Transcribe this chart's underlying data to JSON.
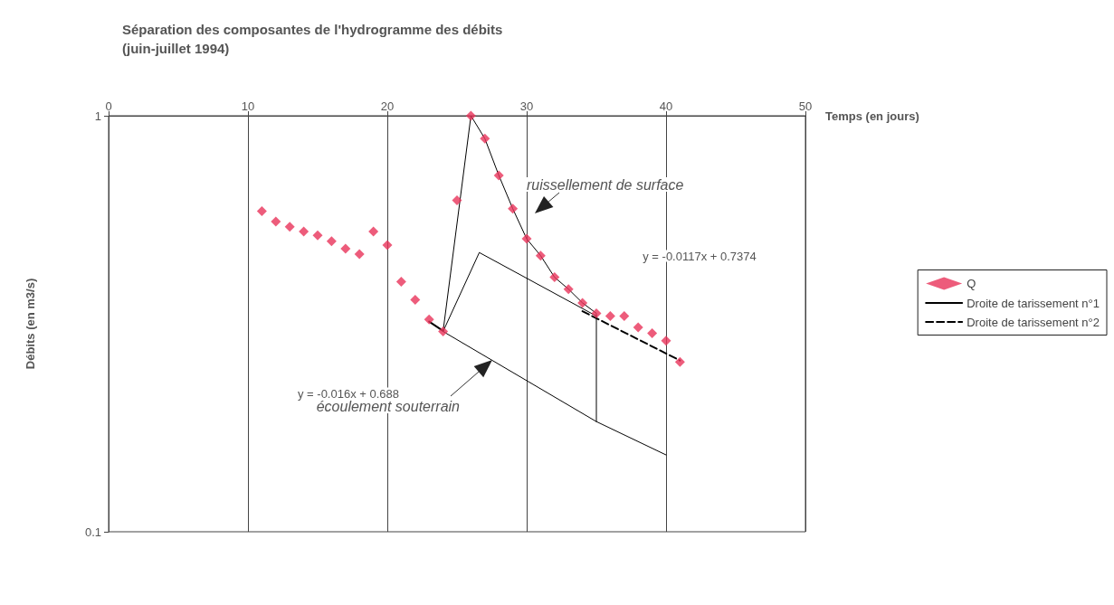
{
  "chart_data": {
    "type": "scatter",
    "title": "Séparation des composantes de l'hydrogramme des débits",
    "subtitle": "(juin-juillet 1994)",
    "xlabel": "Temps (en jours)",
    "ylabel": "Débits (en m3/s)",
    "xlim": [
      0,
      50
    ],
    "xticks": [
      0,
      10,
      20,
      30,
      40,
      50
    ],
    "ylim": [
      0.1,
      1
    ],
    "yticks": [
      0.1,
      1
    ],
    "log": "y",
    "grid": "x",
    "legend": "right",
    "series": [
      {
        "name": "Q",
        "marker": "diamond",
        "color": "#e8335a",
        "x": [
          11,
          12,
          13,
          14,
          15,
          16,
          17,
          18,
          19,
          20,
          21,
          22,
          23,
          24,
          25,
          26,
          27,
          28,
          29,
          30,
          31,
          32,
          33,
          34,
          35,
          36,
          37,
          38,
          39,
          40,
          41
        ],
        "values": [
          0.59,
          0.557,
          0.541,
          0.527,
          0.516,
          0.499,
          0.479,
          0.465,
          0.527,
          0.489,
          0.399,
          0.361,
          0.324,
          0.303,
          0.626,
          1.0,
          0.881,
          0.719,
          0.598,
          0.506,
          0.461,
          0.409,
          0.383,
          0.355,
          0.335,
          0.33,
          0.33,
          0.31,
          0.3,
          0.288,
          0.256
        ]
      },
      {
        "name": "Droite de tarissement n°1",
        "type": "line",
        "marker": "none",
        "line_style": "solid",
        "color": "#000000",
        "x": [
          23,
          24
        ],
        "values": [
          0.32,
          0.304
        ]
      },
      {
        "name": "Droite de tarissement n°2",
        "type": "line",
        "marker": "none",
        "line_style": "dashed",
        "color": "#000000",
        "x": [
          34,
          41
        ],
        "values": [
          0.339,
          0.258
        ]
      },
      {
        "type": "line",
        "marker": "none",
        "line_style": "solid",
        "color": "#000000",
        "x": [
          24,
          26,
          27,
          28,
          29,
          30,
          31,
          32,
          33,
          34,
          35,
          35
        ],
        "values": [
          0.303,
          1.0,
          0.881,
          0.719,
          0.598,
          0.506,
          0.461,
          0.409,
          0.383,
          0.355,
          0.335,
          0.184
        ]
      },
      {
        "type": "line",
        "marker": "none",
        "line_style": "solid",
        "color": "#000000",
        "x": [
          24,
          35,
          40
        ],
        "values": [
          0.303,
          0.184,
          0.153
        ]
      },
      {
        "type": "line",
        "marker": "none",
        "line_style": "solid",
        "color": "#000000",
        "x": [
          24,
          26.6,
          35
        ],
        "values": [
          0.303,
          0.469,
          0.33
        ]
      }
    ],
    "annotations": [
      "ruissellement de surface",
      "écoulement souterrain",
      "y = -0.0117x + 0.7374",
      "y = -0.016x + 0.688"
    ]
  }
}
